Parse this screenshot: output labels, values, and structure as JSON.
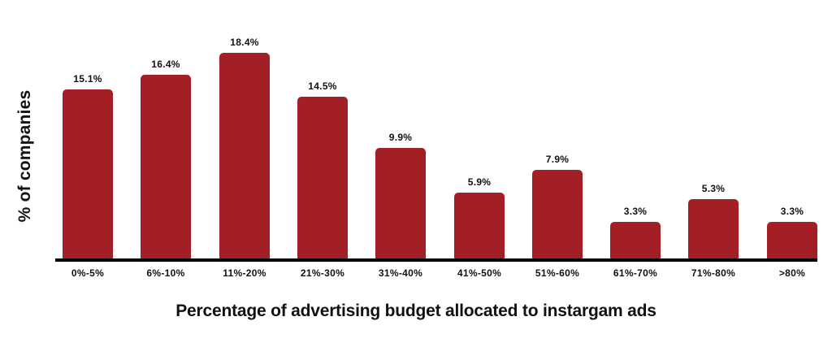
{
  "chart_data": {
    "type": "bar",
    "title": "",
    "xlabel": "Percentage of advertising budget allocated to instargam ads",
    "ylabel": "% of companies",
    "categories": [
      "0%-5%",
      "6%-10%",
      "11%-20%",
      "21%-30%",
      "31%-40%",
      "41%-50%",
      "51%-60%",
      "61%-70%",
      "71%-80%",
      ">80%"
    ],
    "values": [
      15.1,
      16.4,
      18.4,
      14.5,
      9.9,
      5.9,
      7.9,
      3.3,
      5.3,
      3.3
    ],
    "value_labels": [
      "15.1%",
      "16.4%",
      "18.4%",
      "14.5%",
      "9.9%",
      "5.9%",
      "7.9%",
      "3.3%",
      "5.3%",
      "3.3%"
    ],
    "ylim": [
      0,
      18.4
    ],
    "grid": false,
    "legend": null,
    "y_axis_ticks_visible": false,
    "bar_color": "#A41E25",
    "axis_color": "#000000"
  }
}
